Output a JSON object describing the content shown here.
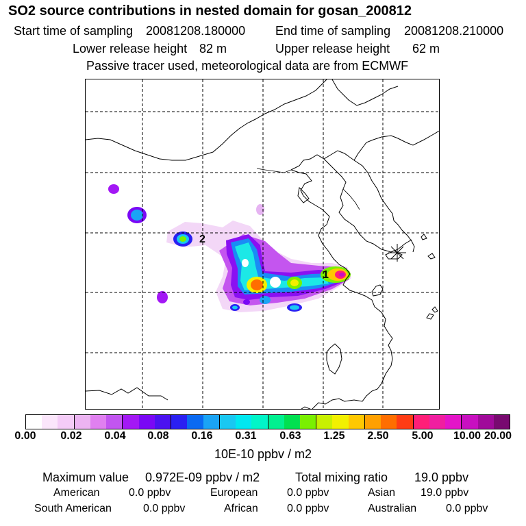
{
  "header": {
    "title": "SO2 source contributions in nested domain for gosan_200812",
    "start_label": "Start time of sampling",
    "start_value": "20081208.180000",
    "end_label": "End time of sampling",
    "end_value": "20081208.210000",
    "lower_label": "Lower release height",
    "lower_value": "82 m",
    "upper_label": "Upper release height",
    "upper_value": "62 m",
    "note": "Passive tracer used, meteorological data are from ECMWF"
  },
  "map": {
    "markers": [
      "1",
      "2"
    ],
    "receptor_icon": "asterisk-icon"
  },
  "colorbar": {
    "colors": [
      "#ffffff",
      "#fbe6fb",
      "#f4ccf7",
      "#ecb4f2",
      "#e080f0",
      "#c255f0",
      "#a318f5",
      "#7a08f5",
      "#4b12f0",
      "#2a20f2",
      "#0a6af2",
      "#1aa4f5",
      "#19c8f2",
      "#00e8f0",
      "#00f5c8",
      "#00f090",
      "#00e050",
      "#7af000",
      "#c8f000",
      "#f2f000",
      "#ffc800",
      "#ffa000",
      "#ff6e00",
      "#ff3c14",
      "#ff1e78",
      "#f01ea0",
      "#e414c8",
      "#c810c0",
      "#a00a9a",
      "#780a70"
    ],
    "ticks": [
      "0.00",
      "0.02",
      "0.04",
      "0.08",
      "0.16",
      "0.31",
      "0.63",
      "1.25",
      "2.50",
      "5.00",
      "10.00",
      "20.00"
    ],
    "units": "10E-10 ppbv / m2"
  },
  "summary": {
    "max_label": "Maximum value",
    "max_value": "0.972E-09 ppbv / m2",
    "total_label": "Total mixing ratio",
    "total_value": "19.0 ppbv",
    "regions": [
      {
        "name": "American",
        "value": "0.0 ppbv"
      },
      {
        "name": "European",
        "value": "0.0 ppbv"
      },
      {
        "name": "Asian",
        "value": "19.0 ppbv"
      },
      {
        "name": "South American",
        "value": "0.0 ppbv"
      },
      {
        "name": "African",
        "value": "0.0 ppbv"
      },
      {
        "name": "Australian",
        "value": "0.0 ppbv"
      }
    ]
  }
}
